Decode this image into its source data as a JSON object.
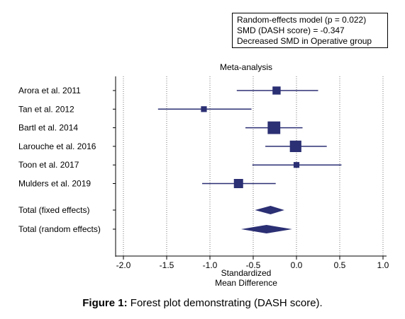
{
  "model_box": {
    "line1": "Random-effects model (p = 0.022)",
    "line2": "SMD (DASH score) = -0.347",
    "line3": "Decreased SMD in Operative group"
  },
  "caption": {
    "label": "Figure 1:",
    "text": " Forest plot demonstrating (DASH score)."
  },
  "colors": {
    "marker": "#2b2f73",
    "axis": "#000000",
    "grid": "#555555"
  },
  "chart_data": {
    "type": "forest",
    "title": "Meta-analysis",
    "xlabel_line1": "Standardized",
    "xlabel_line2": "Mean Difference",
    "xlim": [
      -2.0,
      1.0
    ],
    "xticks": [
      -2.0,
      -1.5,
      -1.0,
      -0.5,
      0.0,
      0.5,
      1.0
    ],
    "xtick_labels": [
      "-2.0",
      "-1.5",
      "-1.0",
      "-0.5",
      "0.0",
      "0.5",
      "1.0"
    ],
    "grid": "vertical dotted",
    "studies": [
      {
        "label": "Arora et al. 2011",
        "smd": -0.23,
        "lower": -0.69,
        "upper": 0.25,
        "weight": 2
      },
      {
        "label": "Tan et al. 2012",
        "smd": -1.07,
        "lower": -1.6,
        "upper": -0.52,
        "weight": 1
      },
      {
        "label": "Bartl et al. 2014",
        "smd": -0.26,
        "lower": -0.59,
        "upper": 0.07,
        "weight": 4
      },
      {
        "label": "Larouche et al. 2016",
        "smd": -0.01,
        "lower": -0.36,
        "upper": 0.35,
        "weight": 3.5
      },
      {
        "label": "Toon et al. 2017",
        "smd": 0.0,
        "lower": -0.51,
        "upper": 0.52,
        "weight": 1
      },
      {
        "label": "Mulders et al. 2019",
        "smd": -0.67,
        "lower": -1.09,
        "upper": -0.24,
        "weight": 2.5
      }
    ],
    "pooled": [
      {
        "label": "Total (fixed effects)",
        "smd": -0.3,
        "lower": -0.48,
        "upper": -0.14
      },
      {
        "label": "Total (random effects)",
        "smd": -0.347,
        "lower": -0.64,
        "upper": -0.05
      }
    ]
  }
}
